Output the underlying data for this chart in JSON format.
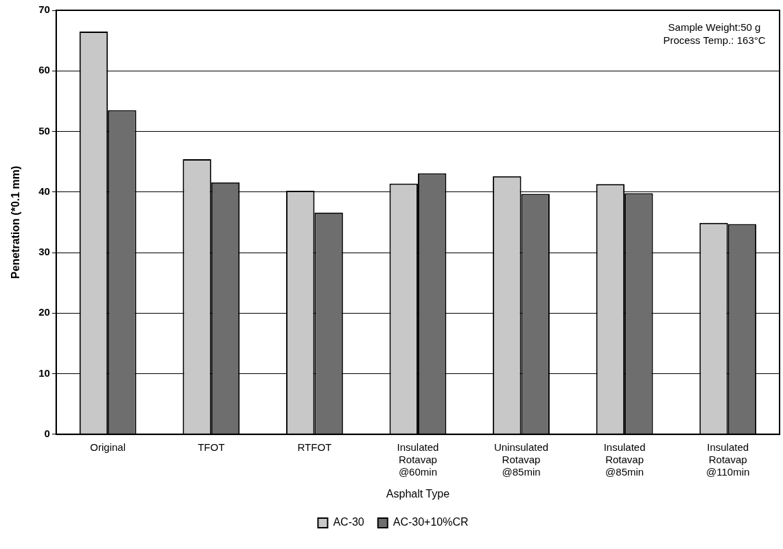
{
  "chart_data": {
    "type": "bar",
    "xlabel": "Asphalt Type",
    "ylabel": "Penetration (*0.1 mm)",
    "categories": [
      "Original",
      "TFOT",
      "RTFOT",
      "Insulated Rotavap @60min",
      "Uninsulated Rotavap @85min",
      "Insulated Rotavap @85min",
      "Insulated Rotavap @110min"
    ],
    "series": [
      {
        "name": "AC-30",
        "color": "#c8c8c8",
        "values": [
          66.5,
          45.4,
          40.2,
          41.4,
          42.6,
          41.3,
          34.9
        ]
      },
      {
        "name": "AC-30+10%CR",
        "color": "#6e6e6e",
        "values": [
          53.5,
          41.6,
          36.6,
          43.1,
          39.7,
          39.8,
          34.7
        ]
      }
    ],
    "ylim": [
      0,
      70
    ],
    "yticks": [
      0,
      10,
      20,
      30,
      40,
      50,
      60,
      70
    ],
    "grid": "y",
    "legend": "bottom",
    "annotations": [
      "Sample Weight:50 g\nProcess Temp.: 163°C"
    ]
  }
}
